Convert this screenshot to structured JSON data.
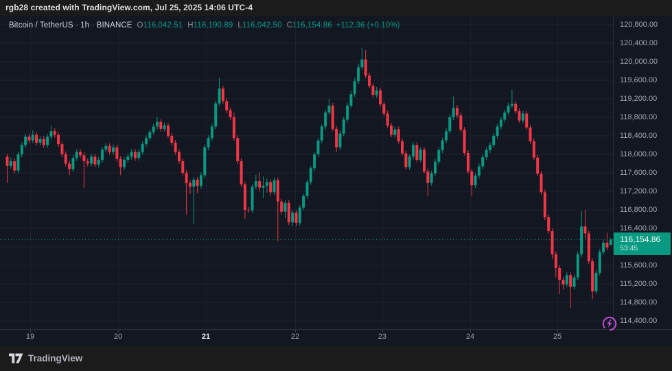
{
  "top_bar": {
    "text": "rgb28 created with TradingView.com, Jul 25, 2025 14:06 UTC-4"
  },
  "legend": {
    "symbol": "Bitcoin / TetherUS",
    "sep1": "·",
    "interval": "1h",
    "sep2": "·",
    "exchange": "BINANCE",
    "o_label": "O",
    "o_value": "116,042.51",
    "h_label": "H",
    "h_value": "116,190.89",
    "l_label": "L",
    "l_value": "116,042.50",
    "c_label": "C",
    "c_value": "116,154.86",
    "change": "+112.36 (+0.10%)"
  },
  "price_axis": {
    "labels": [
      {
        "text": "120,800.00",
        "price": 120800
      },
      {
        "text": "120,400.00",
        "price": 120400
      },
      {
        "text": "120,000.00",
        "price": 120000
      },
      {
        "text": "119,600.00",
        "price": 119600
      },
      {
        "text": "119,200.00",
        "price": 119200
      },
      {
        "text": "118,800.00",
        "price": 118800
      },
      {
        "text": "118,400.00",
        "price": 118400
      },
      {
        "text": "118,000.00",
        "price": 118000
      },
      {
        "text": "117,600.00",
        "price": 117600
      },
      {
        "text": "117,200.00",
        "price": 117200
      },
      {
        "text": "116,800.00",
        "price": 116800
      },
      {
        "text": "116,400.00",
        "price": 116400
      },
      {
        "text": "115,600.00",
        "price": 115600
      },
      {
        "text": "115,200.00",
        "price": 115200
      },
      {
        "text": "114,800.00",
        "price": 114800
      },
      {
        "text": "114,400.00",
        "price": 114400
      }
    ],
    "current_price_label": "116,154.86",
    "countdown": "53:45"
  },
  "time_axis": {
    "labels": [
      {
        "text": "19"
      },
      {
        "text": "20"
      },
      {
        "text": "21",
        "emphasis": true
      },
      {
        "text": "22"
      },
      {
        "text": "23"
      },
      {
        "text": "24"
      },
      {
        "text": "25"
      }
    ]
  },
  "footer": {
    "brand": "TradingView"
  },
  "colors": {
    "up": "#089981",
    "down": "#f23645",
    "badge_bg": "#089981",
    "grid": "#1e2330",
    "axis_line": "#2a2e39",
    "boost_purple": "#b84dd1",
    "background": "#131722",
    "bar_background": "#1b1b1b"
  },
  "chart_data": {
    "type": "candlestick",
    "title": "Bitcoin / TetherUS · 1h · BINANCE",
    "interval": "1h",
    "y_axis": {
      "min": 114400,
      "max": 120800,
      "tick_step": 400,
      "grid": true
    },
    "x_axis": {
      "unit": "days",
      "day_labels": [
        "19",
        "20",
        "21",
        "22",
        "23",
        "24",
        "25"
      ],
      "hours_per_day": 24
    },
    "current_price": 116154.86,
    "last_candle": {
      "open": 116042.51,
      "high": 116190.89,
      "low": 116042.5,
      "close": 116154.86,
      "change": "+112.36 (+0.10%)"
    },
    "candles": [
      [
        117950,
        118010,
        117380,
        117750
      ],
      [
        117750,
        117930,
        117690,
        117850
      ],
      [
        117850,
        117910,
        117590,
        117650
      ],
      [
        117650,
        118060,
        117590,
        118000
      ],
      [
        118000,
        118260,
        117940,
        118200
      ],
      [
        118200,
        118440,
        118140,
        118380
      ],
      [
        118380,
        118440,
        118240,
        118300
      ],
      [
        118300,
        118520,
        118240,
        118420
      ],
      [
        118420,
        118480,
        118190,
        118250
      ],
      [
        118250,
        118390,
        118190,
        118330
      ],
      [
        118330,
        118390,
        118140,
        118200
      ],
      [
        118200,
        118440,
        118140,
        118380
      ],
      [
        118380,
        118620,
        118320,
        118500
      ],
      [
        118500,
        118560,
        118360,
        118420
      ],
      [
        118420,
        118480,
        118160,
        118220
      ],
      [
        118220,
        118280,
        117940,
        118000
      ],
      [
        118000,
        118060,
        117740,
        117800
      ],
      [
        117800,
        117860,
        117550,
        117680
      ],
      [
        117680,
        117980,
        117620,
        117920
      ],
      [
        117920,
        118110,
        117860,
        118050
      ],
      [
        118050,
        118110,
        117920,
        117980
      ],
      [
        117980,
        118040,
        117270,
        117850
      ],
      [
        117850,
        117910,
        117740,
        117800
      ],
      [
        117800,
        118010,
        117740,
        117950
      ],
      [
        117950,
        118010,
        117720,
        117780
      ],
      [
        117780,
        117940,
        117720,
        117880
      ],
      [
        117880,
        118160,
        117820,
        118100
      ],
      [
        118100,
        118240,
        118040,
        118180
      ],
      [
        118180,
        118240,
        117990,
        118050
      ],
      [
        118050,
        118210,
        117990,
        118150
      ],
      [
        118150,
        118210,
        117840,
        117900
      ],
      [
        117900,
        117960,
        117550,
        117720
      ],
      [
        117720,
        117940,
        117660,
        117880
      ],
      [
        117880,
        118010,
        117820,
        117950
      ],
      [
        117950,
        118110,
        117890,
        118050
      ],
      [
        118050,
        118110,
        117860,
        117920
      ],
      [
        117920,
        118110,
        117860,
        118050
      ],
      [
        118050,
        118280,
        117990,
        118220
      ],
      [
        118220,
        118410,
        118160,
        118350
      ],
      [
        118350,
        118540,
        118290,
        118480
      ],
      [
        118480,
        118660,
        118420,
        118600
      ],
      [
        118600,
        118810,
        118540,
        118700
      ],
      [
        118700,
        118760,
        118490,
        118550
      ],
      [
        118550,
        118680,
        118490,
        118620
      ],
      [
        118620,
        118680,
        118340,
        118400
      ],
      [
        118400,
        118460,
        118190,
        118250
      ],
      [
        118250,
        118310,
        117990,
        118050
      ],
      [
        118050,
        118110,
        117790,
        117850
      ],
      [
        117850,
        117910,
        117540,
        117600
      ],
      [
        117600,
        117660,
        116700,
        117380
      ],
      [
        117380,
        117440,
        117140,
        117300
      ],
      [
        117300,
        117510,
        116490,
        117450
      ],
      [
        117450,
        117510,
        117160,
        117320
      ],
      [
        117320,
        117610,
        117260,
        117550
      ],
      [
        117550,
        118210,
        117490,
        118150
      ],
      [
        118150,
        118410,
        118090,
        118350
      ],
      [
        118350,
        118660,
        118290,
        118600
      ],
      [
        118600,
        119160,
        118540,
        119100
      ],
      [
        119100,
        119650,
        119040,
        119420
      ],
      [
        119420,
        119480,
        119090,
        119150
      ],
      [
        119150,
        119210,
        118890,
        118950
      ],
      [
        118950,
        119010,
        118740,
        118800
      ],
      [
        118800,
        118900,
        118290,
        118350
      ],
      [
        118350,
        118410,
        117790,
        117850
      ],
      [
        117850,
        117910,
        117290,
        117350
      ],
      [
        117350,
        117410,
        116600,
        116800
      ],
      [
        116800,
        116860,
        116740,
        116790
      ],
      [
        116790,
        117350,
        116730,
        117300
      ],
      [
        117300,
        117560,
        117240,
        117420
      ],
      [
        117420,
        117600,
        117200,
        117280
      ],
      [
        117280,
        117520,
        117050,
        117320
      ],
      [
        117320,
        117480,
        117170,
        117400
      ],
      [
        117400,
        117460,
        117100,
        117180
      ],
      [
        117180,
        117500,
        117120,
        117440
      ],
      [
        117440,
        117500,
        116120,
        116980
      ],
      [
        116980,
        117040,
        116700,
        116760
      ],
      [
        116760,
        117000,
        116620,
        116950
      ],
      [
        116950,
        117010,
        116470,
        116530
      ],
      [
        116530,
        116800,
        116450,
        116740
      ],
      [
        116740,
        116800,
        116450,
        116520
      ],
      [
        116520,
        116900,
        116460,
        116850
      ],
      [
        116850,
        117150,
        116790,
        117100
      ],
      [
        117100,
        117450,
        117040,
        117400
      ],
      [
        117400,
        117750,
        117340,
        117700
      ],
      [
        117700,
        118050,
        117640,
        118000
      ],
      [
        118000,
        118350,
        117940,
        118300
      ],
      [
        118300,
        118650,
        118240,
        118600
      ],
      [
        118600,
        118960,
        118540,
        118900
      ],
      [
        118900,
        119200,
        118840,
        119050
      ],
      [
        119050,
        119110,
        118500,
        118550
      ],
      [
        118550,
        118610,
        118050,
        118150
      ],
      [
        118150,
        118520,
        118090,
        118450
      ],
      [
        118450,
        118810,
        118390,
        118750
      ],
      [
        118750,
        119110,
        118690,
        119050
      ],
      [
        119050,
        119370,
        118990,
        119300
      ],
      [
        119300,
        119650,
        119240,
        119580
      ],
      [
        119580,
        119960,
        119520,
        119880
      ],
      [
        119880,
        120300,
        119820,
        120050
      ],
      [
        120050,
        120250,
        119640,
        119700
      ],
      [
        119700,
        119760,
        119430,
        119480
      ],
      [
        119480,
        119540,
        119230,
        119280
      ],
      [
        119280,
        119450,
        119220,
        119380
      ],
      [
        119380,
        119440,
        119030,
        119080
      ],
      [
        119080,
        119140,
        118830,
        118880
      ],
      [
        118880,
        118940,
        118570,
        118620
      ],
      [
        118620,
        118680,
        118370,
        118420
      ],
      [
        118420,
        118600,
        118360,
        118540
      ],
      [
        118540,
        118600,
        118230,
        118280
      ],
      [
        118280,
        118340,
        117970,
        118020
      ],
      [
        118020,
        118080,
        117670,
        117720
      ],
      [
        117720,
        118000,
        117660,
        117950
      ],
      [
        117950,
        118260,
        117890,
        118200
      ],
      [
        118200,
        118260,
        117830,
        117880
      ],
      [
        117880,
        118160,
        117820,
        118100
      ],
      [
        118100,
        118160,
        117580,
        117630
      ],
      [
        117630,
        117690,
        117100,
        117380
      ],
      [
        117380,
        117650,
        117320,
        117590
      ],
      [
        117590,
        117900,
        117530,
        117840
      ],
      [
        117840,
        118150,
        117780,
        118090
      ],
      [
        118090,
        118360,
        118030,
        118300
      ],
      [
        118300,
        118560,
        118240,
        118500
      ],
      [
        118500,
        118860,
        118440,
        118800
      ],
      [
        118800,
        119250,
        118740,
        119000
      ],
      [
        119000,
        119060,
        118780,
        118840
      ],
      [
        118840,
        118900,
        118480,
        118530
      ],
      [
        118530,
        118590,
        117980,
        118030
      ],
      [
        118030,
        118090,
        117580,
        117630
      ],
      [
        117630,
        117690,
        117090,
        117330
      ],
      [
        117330,
        117600,
        117270,
        117540
      ],
      [
        117540,
        117800,
        117480,
        117740
      ],
      [
        117740,
        118000,
        117680,
        117940
      ],
      [
        117940,
        118150,
        117880,
        118090
      ],
      [
        118090,
        118260,
        118030,
        118200
      ],
      [
        118200,
        118460,
        118140,
        118400
      ],
      [
        118400,
        118660,
        118340,
        118600
      ],
      [
        118600,
        118810,
        118540,
        118750
      ],
      [
        118750,
        118960,
        118690,
        118900
      ],
      [
        118900,
        119110,
        118840,
        119050
      ],
      [
        119050,
        119400,
        118990,
        119090
      ],
      [
        119090,
        119150,
        118880,
        118930
      ],
      [
        118930,
        118990,
        118680,
        118730
      ],
      [
        118730,
        118940,
        118670,
        118880
      ],
      [
        118880,
        118940,
        118530,
        118580
      ],
      [
        118580,
        118640,
        118230,
        118280
      ],
      [
        118280,
        118340,
        117880,
        117930
      ],
      [
        117930,
        117990,
        117530,
        117580
      ],
      [
        117580,
        117640,
        117130,
        117180
      ],
      [
        117180,
        117240,
        116580,
        116640
      ],
      [
        116640,
        116700,
        116290,
        116340
      ],
      [
        116340,
        116400,
        115740,
        115840
      ],
      [
        115840,
        115900,
        115340,
        115540
      ],
      [
        115540,
        115600,
        114980,
        115290
      ],
      [
        115290,
        115350,
        115080,
        115190
      ],
      [
        115190,
        115450,
        115130,
        115390
      ],
      [
        115390,
        115450,
        114680,
        115140
      ],
      [
        115140,
        115400,
        115080,
        115340
      ],
      [
        115340,
        115900,
        115280,
        115840
      ],
      [
        115840,
        116770,
        115780,
        116440
      ],
      [
        116440,
        116800,
        116180,
        116290
      ],
      [
        116290,
        116350,
        115630,
        115690
      ],
      [
        115690,
        115750,
        114870,
        115040
      ],
      [
        115040,
        115500,
        114980,
        115440
      ],
      [
        115440,
        115950,
        115380,
        115890
      ],
      [
        115890,
        116150,
        115830,
        116090
      ],
      [
        116090,
        116300,
        115930,
        115990
      ],
      [
        116042.51,
        116190.89,
        116042.5,
        116154.86
      ]
    ]
  }
}
